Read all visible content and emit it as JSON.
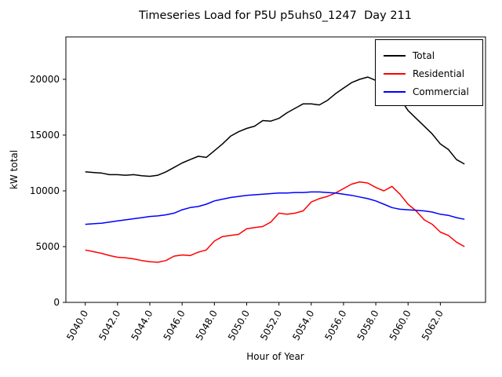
{
  "chart_data": {
    "type": "line",
    "title": "Timeseries Load for P5U p5uhs0_1247  Day 211",
    "xlabel": "Hour of Year",
    "ylabel": "kW total",
    "xlim": [
      5038.8,
      5064.8
    ],
    "ylim": [
      0,
      23800
    ],
    "grid": false,
    "legend_position": "upper right",
    "x_ticks": [
      5040,
      5042,
      5044,
      5046,
      5048,
      5050,
      5052,
      5054,
      5056,
      5058,
      5060,
      5062
    ],
    "x_tick_labels": [
      "5040.0",
      "5042.0",
      "5044.0",
      "5046.0",
      "5048.0",
      "5050.0",
      "5052.0",
      "5054.0",
      "5056.0",
      "5058.0",
      "5060.0",
      "5062.0"
    ],
    "y_ticks": [
      0,
      5000,
      10000,
      15000,
      20000
    ],
    "y_tick_labels": [
      "0",
      "5000",
      "10000",
      "15000",
      "20000"
    ],
    "x": [
      5040.0,
      5040.5,
      5041.0,
      5041.5,
      5042.0,
      5042.5,
      5043.0,
      5043.5,
      5044.0,
      5044.5,
      5045.0,
      5045.5,
      5046.0,
      5046.5,
      5047.0,
      5047.5,
      5048.0,
      5048.5,
      5049.0,
      5049.5,
      5050.0,
      5050.5,
      5051.0,
      5051.5,
      5052.0,
      5052.5,
      5053.0,
      5053.5,
      5054.0,
      5054.5,
      5055.0,
      5055.5,
      5056.0,
      5056.5,
      5057.0,
      5057.5,
      5058.0,
      5058.5,
      5059.0,
      5059.5,
      5060.0,
      5060.5,
      5061.0,
      5061.5,
      5062.0,
      5062.5,
      5063.0,
      5063.5
    ],
    "series": [
      {
        "name": "Total",
        "color": "#000000",
        "values": [
          11700,
          11650,
          11600,
          11450,
          11450,
          11400,
          11450,
          11350,
          11300,
          11400,
          11700,
          12100,
          12500,
          12800,
          13100,
          13000,
          13600,
          14200,
          14900,
          15300,
          15600,
          15800,
          16300,
          16250,
          16500,
          17000,
          17400,
          17800,
          17800,
          17700,
          18100,
          18700,
          19200,
          19700,
          20000,
          20200,
          19900,
          18800,
          19000,
          18300,
          17200,
          16500,
          15800,
          15100,
          14200,
          13700,
          12800,
          12400
        ]
      },
      {
        "name": "Residential",
        "color": "#ff0000",
        "values": [
          4700,
          4550,
          4400,
          4200,
          4050,
          4000,
          3900,
          3750,
          3650,
          3600,
          3750,
          4150,
          4250,
          4200,
          4500,
          4700,
          5500,
          5900,
          6000,
          6100,
          6600,
          6700,
          6800,
          7200,
          8000,
          7900,
          8000,
          8200,
          9000,
          9300,
          9500,
          9800,
          10200,
          10600,
          10800,
          10700,
          10300,
          10000,
          10400,
          9700,
          8800,
          8200,
          7400,
          7000,
          6300,
          6000,
          5400,
          5000
        ]
      },
      {
        "name": "Commercial",
        "color": "#0000ff",
        "values": [
          7000,
          7050,
          7100,
          7200,
          7300,
          7400,
          7500,
          7600,
          7700,
          7750,
          7850,
          8000,
          8300,
          8500,
          8600,
          8800,
          9100,
          9250,
          9400,
          9500,
          9600,
          9650,
          9700,
          9750,
          9800,
          9800,
          9850,
          9850,
          9900,
          9900,
          9850,
          9800,
          9700,
          9600,
          9450,
          9300,
          9100,
          8800,
          8500,
          8350,
          8300,
          8250,
          8200,
          8100,
          7900,
          7800,
          7600,
          7450
        ]
      }
    ]
  }
}
